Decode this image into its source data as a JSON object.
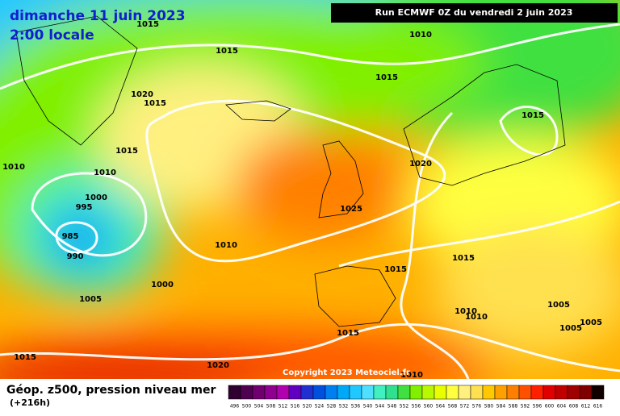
{
  "header": {
    "date": "dimanche 11 juin 2023",
    "time": "2:00 locale",
    "run": "Run ECMWF 0Z du vendredi 2 juin 2023"
  },
  "isobar_labels": [
    "1015",
    "1015",
    "1010",
    "1015",
    "1020",
    "1015",
    "1015",
    "1015",
    "1010",
    "1010",
    "1020",
    "1000",
    "995",
    "985",
    "990",
    "1010",
    "1025",
    "1015",
    "1015",
    "1000",
    "1005",
    "1005",
    "1010",
    "1010",
    "1005",
    "1005",
    "1015",
    "1015",
    "1020",
    "1010"
  ],
  "copyright": "Copyright 2023 Meteociel.fr",
  "footer": {
    "title": "Géop. z500, pression niveau mer",
    "lead": "(+216h)"
  },
  "legend": {
    "levels": [
      496,
      500,
      504,
      508,
      512,
      516,
      520,
      524,
      528,
      532,
      536,
      540,
      544,
      548,
      552,
      556,
      560,
      564,
      568,
      572,
      576,
      580,
      584,
      588,
      592,
      596,
      600,
      604,
      608,
      612,
      616
    ],
    "colors": [
      "#300030",
      "#500050",
      "#700070",
      "#900090",
      "#b000b0",
      "#6000c0",
      "#2030d0",
      "#0050e0",
      "#0080f0",
      "#00a8f8",
      "#20c8ff",
      "#50e0ff",
      "#40f0c0",
      "#30e090",
      "#40e040",
      "#80f000",
      "#b8f800",
      "#e8ff00",
      "#ffff40",
      "#fff080",
      "#ffe050",
      "#ffc800",
      "#ffa000",
      "#ff8000",
      "#ff5000",
      "#ff2000",
      "#e00000",
      "#c00000",
      "#a00000",
      "#800000",
      "#100000"
    ]
  }
}
